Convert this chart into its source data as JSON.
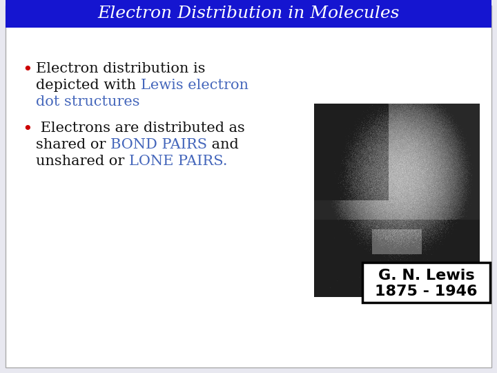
{
  "title": "Electron Distribution in Molecules",
  "title_bg_color": "#1515d0",
  "title_text_color": "#ffffff",
  "slide_bg_color": "#e8e8f0",
  "bullet_color": "#cc0000",
  "blue_text_color": "#4466bb",
  "black_text_color": "#111111",
  "caption_line1": "G. N. Lewis",
  "caption_line2": "1875 - 1946",
  "caption_bg": "#ffffff",
  "caption_border": "#000000",
  "caption_text_color": "#000000",
  "font_size_title": 18,
  "font_size_body": 15,
  "font_size_caption": 14,
  "font_size_bullet": 18
}
